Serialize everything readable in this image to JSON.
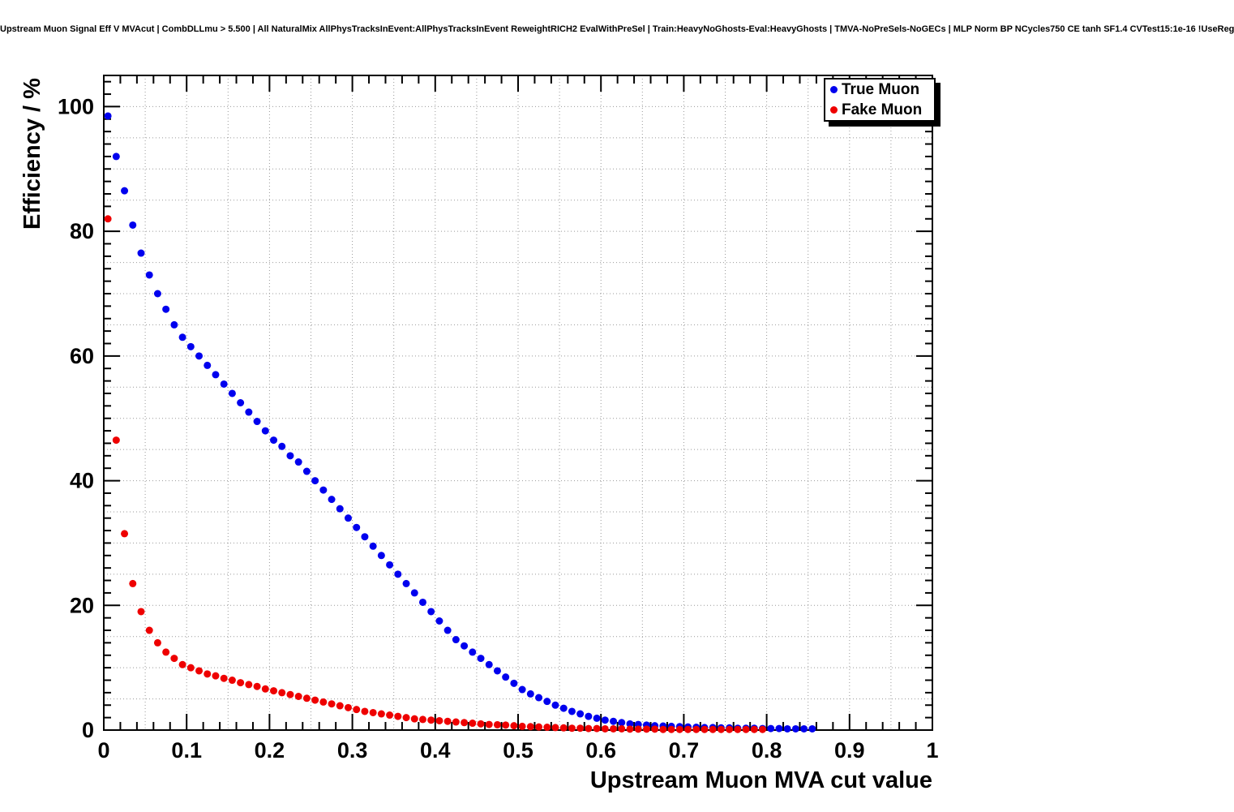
{
  "title": "Upstream Muon Signal Eff V MVAcut | CombDLLmu > 5.500 | All NaturalMix AllPhysTracksInEvent:AllPhysTracksInEvent ReweightRICH2 EvalWithPreSel | Train:HeavyNoGhosts-Eval:HeavyGhosts | TMVA-NoPreSels-NoGECs | MLP Norm BP NCycles750 CE tanh SF1.4 CVTest15:1e-16 !UseReg",
  "colors": {
    "true_muon": "#0000ee",
    "fake_muon": "#ee0000",
    "frame": "#000000",
    "grid": "#999999",
    "background": "#ffffff"
  },
  "legend": {
    "entries": [
      {
        "label": "True Muon",
        "color": "#0000ee"
      },
      {
        "label": "Fake Muon",
        "color": "#ee0000"
      }
    ]
  },
  "chart_data": {
    "type": "scatter",
    "title": "Upstream Muon Signal Eff V MVAcut | CombDLLmu > 5.500 | All NaturalMix AllPhysTracksInEvent:AllPhysTracksInEvent ReweightRICH2 EvalWithPreSel | Train:HeavyNoGhosts-Eval:HeavyGhosts | TMVA-NoPreSels-NoGECs | MLP Norm BP NCycles750 CE tanh SF1.4 CVTest15:1e-16 !UseReg",
    "xlabel": "Upstream Muon MVA cut value",
    "ylabel": "Efficiency / %",
    "xlim": [
      0,
      1
    ],
    "ylim": [
      0,
      105
    ],
    "grid": true,
    "legend_position": "top-right",
    "x_ticks": [
      {
        "value": 0,
        "label": "0"
      },
      {
        "value": 0.1,
        "label": "0.1"
      },
      {
        "value": 0.2,
        "label": "0.2"
      },
      {
        "value": 0.3,
        "label": "0.3"
      },
      {
        "value": 0.4,
        "label": "0.4"
      },
      {
        "value": 0.5,
        "label": "0.5"
      },
      {
        "value": 0.6,
        "label": "0.6"
      },
      {
        "value": 0.7,
        "label": "0.7"
      },
      {
        "value": 0.8,
        "label": "0.8"
      },
      {
        "value": 0.9,
        "label": "0.9"
      },
      {
        "value": 1,
        "label": "1"
      }
    ],
    "y_ticks": [
      {
        "value": 0,
        "label": "0"
      },
      {
        "value": 20,
        "label": "20"
      },
      {
        "value": 40,
        "label": "40"
      },
      {
        "value": 60,
        "label": "60"
      },
      {
        "value": 80,
        "label": "80"
      },
      {
        "value": 100,
        "label": "100"
      }
    ],
    "series": [
      {
        "name": "True Muon",
        "color": "#0000ee",
        "marker": "circle",
        "x": [
          0.005,
          0.015,
          0.025,
          0.035,
          0.045,
          0.055,
          0.065,
          0.075,
          0.085,
          0.095,
          0.105,
          0.115,
          0.125,
          0.135,
          0.145,
          0.155,
          0.165,
          0.175,
          0.185,
          0.195,
          0.205,
          0.215,
          0.225,
          0.235,
          0.245,
          0.255,
          0.265,
          0.275,
          0.285,
          0.295,
          0.305,
          0.315,
          0.325,
          0.335,
          0.345,
          0.355,
          0.365,
          0.375,
          0.385,
          0.395,
          0.405,
          0.415,
          0.425,
          0.435,
          0.445,
          0.455,
          0.465,
          0.475,
          0.485,
          0.495,
          0.505,
          0.515,
          0.525,
          0.535,
          0.545,
          0.555,
          0.565,
          0.575,
          0.585,
          0.595,
          0.605,
          0.615,
          0.625,
          0.635,
          0.645,
          0.655,
          0.665,
          0.675,
          0.685,
          0.695,
          0.705,
          0.715,
          0.725,
          0.735,
          0.745,
          0.755,
          0.765,
          0.775,
          0.785,
          0.795,
          0.805,
          0.815,
          0.825,
          0.835,
          0.845,
          0.855
        ],
        "y": [
          98.5,
          92,
          86.5,
          81,
          76.5,
          73,
          70,
          67.5,
          65,
          63,
          61.5,
          60,
          58.5,
          57,
          55.5,
          54,
          52.5,
          51,
          49.5,
          48,
          46.5,
          45.5,
          44,
          43,
          41.5,
          40,
          38.5,
          37,
          35.5,
          34,
          32.5,
          31,
          29.5,
          28,
          26.5,
          25,
          23.5,
          22,
          20.5,
          19,
          17.5,
          16,
          14.5,
          13.5,
          12.5,
          11.5,
          10.5,
          9.5,
          8.5,
          7.5,
          6.5,
          5.8,
          5.2,
          4.6,
          4.0,
          3.5,
          3.0,
          2.6,
          2.2,
          1.9,
          1.6,
          1.4,
          1.2,
          1.0,
          0.9,
          0.8,
          0.7,
          0.65,
          0.6,
          0.55,
          0.5,
          0.45,
          0.4,
          0.4,
          0.35,
          0.35,
          0.3,
          0.3,
          0.3,
          0.25,
          0.25,
          0.25,
          0.2,
          0.2,
          0.2,
          0.2
        ]
      },
      {
        "name": "Fake Muon",
        "color": "#ee0000",
        "marker": "circle",
        "x": [
          0.005,
          0.015,
          0.025,
          0.035,
          0.045,
          0.055,
          0.065,
          0.075,
          0.085,
          0.095,
          0.105,
          0.115,
          0.125,
          0.135,
          0.145,
          0.155,
          0.165,
          0.175,
          0.185,
          0.195,
          0.205,
          0.215,
          0.225,
          0.235,
          0.245,
          0.255,
          0.265,
          0.275,
          0.285,
          0.295,
          0.305,
          0.315,
          0.325,
          0.335,
          0.345,
          0.355,
          0.365,
          0.375,
          0.385,
          0.395,
          0.405,
          0.415,
          0.425,
          0.435,
          0.445,
          0.455,
          0.465,
          0.475,
          0.485,
          0.495,
          0.505,
          0.515,
          0.525,
          0.535,
          0.545,
          0.555,
          0.565,
          0.575,
          0.585,
          0.595,
          0.605,
          0.615,
          0.625,
          0.635,
          0.645,
          0.655,
          0.665,
          0.675,
          0.685,
          0.695,
          0.705,
          0.715,
          0.725,
          0.735,
          0.745,
          0.755,
          0.765,
          0.775,
          0.785,
          0.795
        ],
        "y": [
          82,
          46.5,
          31.5,
          23.5,
          19,
          16,
          14,
          12.5,
          11.5,
          10.5,
          10,
          9.5,
          9,
          8.7,
          8.3,
          8,
          7.6,
          7.3,
          7,
          6.6,
          6.3,
          6,
          5.7,
          5.4,
          5.1,
          4.8,
          4.5,
          4.2,
          3.9,
          3.6,
          3.3,
          3.0,
          2.8,
          2.6,
          2.4,
          2.2,
          2.0,
          1.8,
          1.7,
          1.6,
          1.5,
          1.4,
          1.3,
          1.2,
          1.1,
          1.0,
          0.9,
          0.85,
          0.8,
          0.7,
          0.6,
          0.55,
          0.5,
          0.45,
          0.4,
          0.35,
          0.3,
          0.3,
          0.25,
          0.25,
          0.2,
          0.2,
          0.2,
          0.15,
          0.15,
          0.15,
          0.15,
          0.1,
          0.1,
          0.1,
          0.1,
          0.1,
          0.1,
          0.1,
          0.1,
          0.1,
          0.1,
          0.1,
          0.1,
          0.1
        ]
      }
    ]
  }
}
